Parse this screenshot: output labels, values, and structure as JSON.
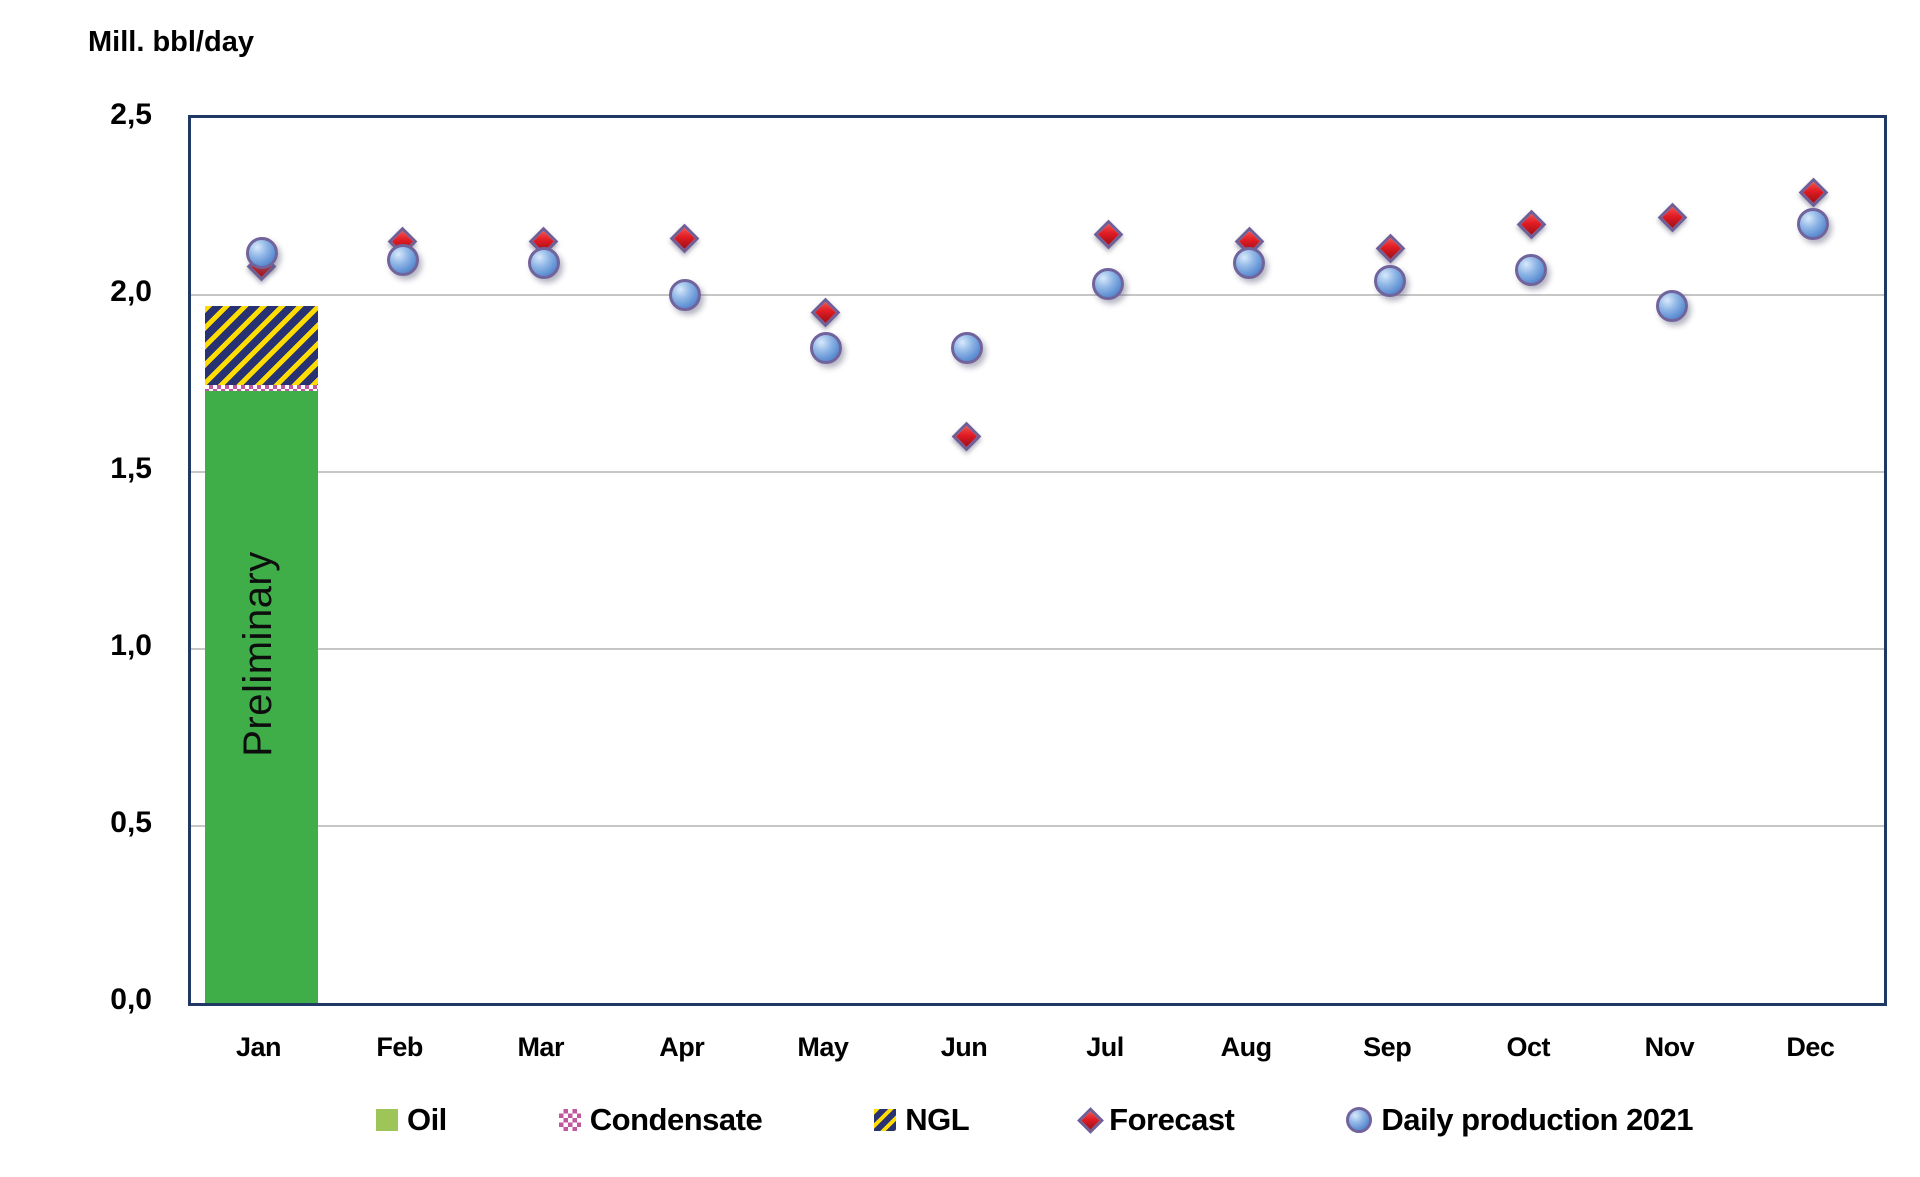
{
  "header": {
    "y_axis_title": "Mill. bbl/day"
  },
  "chart_data": {
    "type": "combo-bar-scatter",
    "title": "Mill. bbl/day",
    "categories": [
      "Jan",
      "Feb",
      "Mar",
      "Apr",
      "May",
      "Jun",
      "Jul",
      "Aug",
      "Sep",
      "Oct",
      "Nov",
      "Dec"
    ],
    "y_tick_labels": [
      "0,0",
      "0,5",
      "1,0",
      "1,5",
      "2,0",
      "2,5"
    ],
    "y_tick_values": [
      0,
      0.5,
      1.0,
      1.5,
      2.0,
      2.5
    ],
    "ylim": [
      0,
      2.5
    ],
    "grid": "horizontal",
    "decimal_separator": ",",
    "bar": {
      "month": "Jan",
      "annotation": "Preliminary",
      "total": 1.97,
      "segments": [
        {
          "name": "Oil",
          "value": 1.73,
          "style": "oil"
        },
        {
          "name": "Condensate",
          "value": 0.015,
          "style": "condensate"
        },
        {
          "name": "NGL",
          "value": 0.225,
          "style": "ngl"
        }
      ]
    },
    "series": [
      {
        "name": "Forecast",
        "marker": "diamond",
        "values": [
          2.08,
          2.15,
          2.15,
          2.16,
          1.95,
          1.6,
          2.17,
          2.15,
          2.13,
          2.2,
          2.22,
          2.29
        ]
      },
      {
        "name": "Daily production 2021",
        "marker": "circle",
        "values": [
          2.12,
          2.1,
          2.09,
          2.0,
          1.85,
          1.85,
          2.03,
          2.09,
          2.04,
          2.07,
          1.97,
          2.2
        ]
      }
    ],
    "legend": [
      {
        "label": "Oil",
        "swatch": "oil"
      },
      {
        "label": "Condensate",
        "swatch": "cond"
      },
      {
        "label": "NGL",
        "swatch": "ngl"
      },
      {
        "label": "Forecast",
        "swatch": "diamond"
      },
      {
        "label": "Daily production 2021",
        "swatch": "circle"
      }
    ],
    "colors": {
      "oil_bar": "#3fae49",
      "oil_legend": "#9dc558",
      "condensate_pink": "#c0579f",
      "ngl_navy": "#283272",
      "ngl_yellow": "#ffdd00",
      "forecast_red": "#e01b24",
      "daily_blue": "#5d8ed2",
      "marker_border": "#6f5f96",
      "plot_border": "#1f3864",
      "gridline": "#c6c6c6"
    }
  }
}
